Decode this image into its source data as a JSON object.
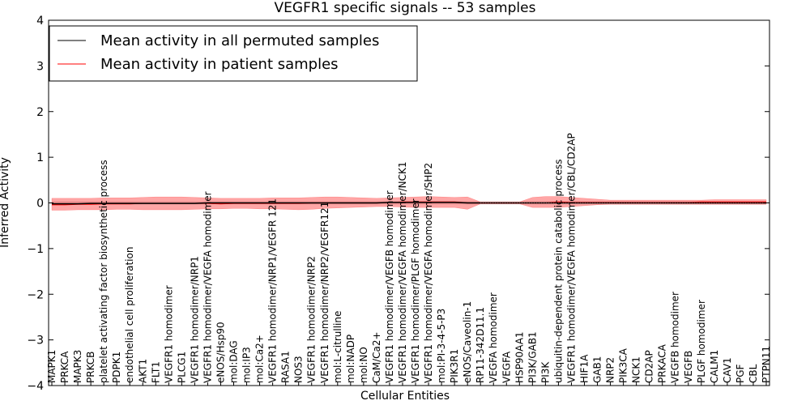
{
  "chart_data": {
    "type": "line",
    "title": "VEGFR1 specific signals -- 53 samples",
    "xlabel": "Cellular Entities",
    "ylabel": "Inferred Activity",
    "ylim": [
      -4,
      4
    ],
    "yticks": [
      "4",
      "3",
      "2",
      "1",
      "0",
      "−1",
      "−2",
      "−3",
      "−4"
    ],
    "grid": false,
    "legend_position": "top-left",
    "categories": [
      "MAPK1",
      "PRKCA",
      "MAPK3",
      "PRKCB",
      "platelet activating factor biosynthetic process",
      "PDPK1",
      "endothelial cell proliferation",
      "AKT1",
      "FLT1",
      "VEGFR1 homodimer",
      "PLCG1",
      "VEGFR1 homodimer/NRP1",
      "VEGFR1 homodimer/VEGFA homodimer",
      "eNOS/Hsp90",
      "mol:DAG",
      "mol:IP3",
      "mol:Ca2+",
      "VEGFR1 homodimer/NRP1/VEGFR 121",
      "RASA1",
      "NOS3",
      "VEGFR1 homodimer/NRP2",
      "VEGFR1 homodimer/NRP2/VEGFR121",
      "mol:L-citrulline",
      "mol:NADP",
      "mol:NO",
      "CaM/Ca2+",
      "VEGFR1 homodimer/VEGFB homodimer",
      "VEGFR1 homodimer/VEGFA homodimer/NCK1",
      "VEGFR1 homodimer/PLGF homodimer",
      "VEGFR1 homodimer/VEGFA homodimer/SHP2",
      "mol:PI-3-4-5-P3",
      "PIK3R1",
      "eNOS/Caveolin-1",
      "RP11-342D11.1",
      "VEGFA homodimer",
      "VEGFA",
      "HSP90AA1",
      "PI3K/GAB1",
      "PI3K",
      "ubiquitin-dependent protein catabolic process",
      "VEGFR1 homodimer/VEGFA homodimer/CBL/CD2AP",
      "HIF1A",
      "GAB1",
      "NRP2",
      "PIK3CA",
      "NCK1",
      "CD2AP",
      "PRKACA",
      "VEGFB homodimer",
      "VEGFB",
      "PLGF homodimer",
      "CALM1",
      "CAV1",
      "PGF",
      "CBL",
      "PTPN11"
    ],
    "series": [
      {
        "name": "Mean activity in all permuted samples",
        "color": "#000000",
        "values": [
          -0.02,
          -0.02,
          -0.02,
          -0.01,
          -0.01,
          -0.01,
          -0.01,
          -0.01,
          -0.01,
          -0.01,
          -0.01,
          -0.01,
          0,
          0,
          0,
          0,
          0,
          0,
          0,
          0,
          0,
          0,
          0,
          0,
          0,
          0,
          0.01,
          0.01,
          0.01,
          0.01,
          0.01,
          0.01,
          0,
          0,
          0,
          0,
          0,
          0,
          0,
          0,
          0,
          0,
          0,
          0,
          0,
          0,
          0,
          0,
          0,
          0,
          0,
          0,
          0,
          0,
          0,
          0
        ]
      },
      {
        "name": "Mean activity in patient samples",
        "color": "#ff0000",
        "values": [
          -0.04,
          -0.04,
          -0.03,
          -0.03,
          -0.02,
          -0.02,
          -0.02,
          -0.01,
          -0.01,
          -0.01,
          -0.01,
          -0.01,
          -0.01,
          -0.02,
          -0.01,
          -0.01,
          -0.01,
          -0.01,
          -0.01,
          -0.01,
          0,
          0,
          0,
          0,
          0,
          0,
          0.01,
          0.02,
          0.02,
          0.02,
          0.02,
          0.02,
          0,
          0,
          0,
          0,
          0,
          0,
          0,
          0.02,
          0.01,
          0.01,
          0.01,
          0.01,
          0.01,
          0.01,
          0.01,
          0.01,
          0.01,
          0.01,
          0.02,
          0.02,
          0.02,
          0.02,
          0.02,
          0.02
        ],
        "band_upper": [
          0.1,
          0.1,
          0.1,
          0.1,
          0.11,
          0.11,
          0.11,
          0.12,
          0.13,
          0.13,
          0.13,
          0.12,
          0.11,
          0.1,
          0.1,
          0.1,
          0.1,
          0.11,
          0.11,
          0.11,
          0.12,
          0.13,
          0.13,
          0.12,
          0.11,
          0.1,
          0.11,
          0.12,
          0.13,
          0.14,
          0.13,
          0.12,
          0.13,
          0.02,
          0.02,
          0.02,
          0.02,
          0.12,
          0.14,
          0.14,
          0.12,
          0.1,
          0.08,
          0.06,
          0.06,
          0.06,
          0.06,
          0.06,
          0.06,
          0.06,
          0.06,
          0.07,
          0.07,
          0.07,
          0.07,
          0.07
        ],
        "band_lower": [
          -0.16,
          -0.16,
          -0.15,
          -0.15,
          -0.15,
          -0.14,
          -0.14,
          -0.15,
          -0.15,
          -0.15,
          -0.15,
          -0.14,
          -0.13,
          -0.13,
          -0.12,
          -0.12,
          -0.13,
          -0.13,
          -0.14,
          -0.15,
          -0.14,
          -0.12,
          -0.11,
          -0.1,
          -0.09,
          -0.08,
          -0.08,
          -0.09,
          -0.1,
          -0.1,
          -0.1,
          -0.1,
          -0.14,
          -0.02,
          -0.02,
          -0.02,
          -0.02,
          -0.1,
          -0.1,
          -0.1,
          -0.08,
          -0.06,
          -0.04,
          -0.03,
          -0.03,
          -0.03,
          -0.03,
          -0.03,
          -0.03,
          -0.03,
          -0.03,
          -0.03,
          -0.03,
          -0.03,
          -0.03,
          -0.03
        ]
      }
    ]
  }
}
